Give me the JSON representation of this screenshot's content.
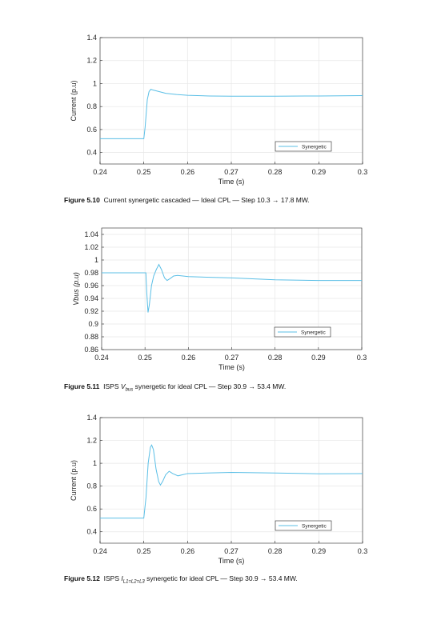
{
  "chart_data": [
    {
      "type": "line",
      "ylabel": "Current (p.u)",
      "xlabel": "Time (s)",
      "xlim": [
        0.24,
        0.3
      ],
      "xticks": [
        0.24,
        0.25,
        0.26,
        0.27,
        0.28,
        0.29,
        0.3
      ],
      "ylim": [
        0.3,
        1.4
      ],
      "yticks": [
        0.4,
        0.6,
        0.8,
        1,
        1.2,
        1.4
      ],
      "grid": true,
      "legend": "lower right",
      "series": [
        {
          "name": "Synergetic",
          "color": "#5bbfe6",
          "x": [
            0.24,
            0.25,
            0.2503,
            0.2508,
            0.2512,
            0.2516,
            0.252,
            0.2535,
            0.255,
            0.2575,
            0.26,
            0.265,
            0.27,
            0.28,
            0.29,
            0.3
          ],
          "values": [
            0.52,
            0.52,
            0.62,
            0.86,
            0.93,
            0.95,
            0.945,
            0.93,
            0.915,
            0.905,
            0.898,
            0.892,
            0.89,
            0.89,
            0.892,
            0.895
          ]
        }
      ],
      "caption": [
        {
          "text": "Figure 5.10",
          "style": "bold"
        },
        {
          "text": "  Current synergetic cascaded — Ideal CPL — Step 10.3 → 17.8 MW."
        }
      ]
    },
    {
      "type": "line",
      "ylabel": "Vbus (p.u)",
      "xlabel": "Time (s)",
      "xlim": [
        0.24,
        0.3
      ],
      "xticks": [
        0.24,
        0.25,
        0.26,
        0.27,
        0.28,
        0.29,
        0.3
      ],
      "ylim": [
        0.86,
        1.05
      ],
      "yticks": [
        0.86,
        0.88,
        0.9,
        0.92,
        0.94,
        0.96,
        0.98,
        1,
        1.02,
        1.04
      ],
      "grid": true,
      "legend": "lower right",
      "series": [
        {
          "name": "Synergetic",
          "color": "#5bbfe6",
          "x": [
            0.24,
            0.2502,
            0.2504,
            0.2507,
            0.251,
            0.2515,
            0.252,
            0.2526,
            0.2532,
            0.2538,
            0.2545,
            0.2551,
            0.2558,
            0.2566,
            0.2575,
            0.26,
            0.27,
            0.28,
            0.29,
            0.3
          ],
          "values": [
            0.98,
            0.98,
            0.95,
            0.918,
            0.93,
            0.96,
            0.975,
            0.985,
            0.993,
            0.985,
            0.972,
            0.968,
            0.971,
            0.975,
            0.976,
            0.974,
            0.972,
            0.969,
            0.968,
            0.968
          ]
        }
      ],
      "caption": [
        {
          "text": "Figure 5.11",
          "style": "bold"
        },
        {
          "text": "  ISPS "
        },
        {
          "text": "V",
          "style": "italic"
        },
        {
          "text": "bus",
          "style": "sub"
        },
        {
          "text": " synergetic for ideal CPL — Step 30.9 → 53.4 MW."
        }
      ]
    },
    {
      "type": "line",
      "ylabel": "Current (p.u)",
      "xlabel": "Time (s)",
      "xlim": [
        0.24,
        0.3
      ],
      "xticks": [
        0.24,
        0.25,
        0.26,
        0.27,
        0.28,
        0.29,
        0.3
      ],
      "ylim": [
        0.3,
        1.4
      ],
      "yticks": [
        0.4,
        0.6,
        0.8,
        1,
        1.2,
        1.4
      ],
      "grid": true,
      "legend": "lower right",
      "series": [
        {
          "name": "Synergetic",
          "color": "#5bbfe6",
          "x": [
            0.24,
            0.25,
            0.2505,
            0.251,
            0.2515,
            0.2518,
            0.2522,
            0.2528,
            0.2534,
            0.2538,
            0.2543,
            0.255,
            0.2558,
            0.2566,
            0.2578,
            0.26,
            0.27,
            0.28,
            0.29,
            0.3
          ],
          "values": [
            0.52,
            0.52,
            0.7,
            1.0,
            1.14,
            1.16,
            1.12,
            0.95,
            0.84,
            0.81,
            0.84,
            0.9,
            0.93,
            0.91,
            0.89,
            0.91,
            0.92,
            0.915,
            0.908,
            0.91
          ]
        }
      ],
      "caption": [
        {
          "text": "Figure 5.12",
          "style": "bold"
        },
        {
          "text": "  ISPS "
        },
        {
          "text": "I",
          "style": "italic"
        },
        {
          "text": "L1=L2=L3",
          "style": "sub"
        },
        {
          "text": " synergetic for ideal CPL — Step 30.9 → 53.4 MW."
        }
      ]
    }
  ]
}
